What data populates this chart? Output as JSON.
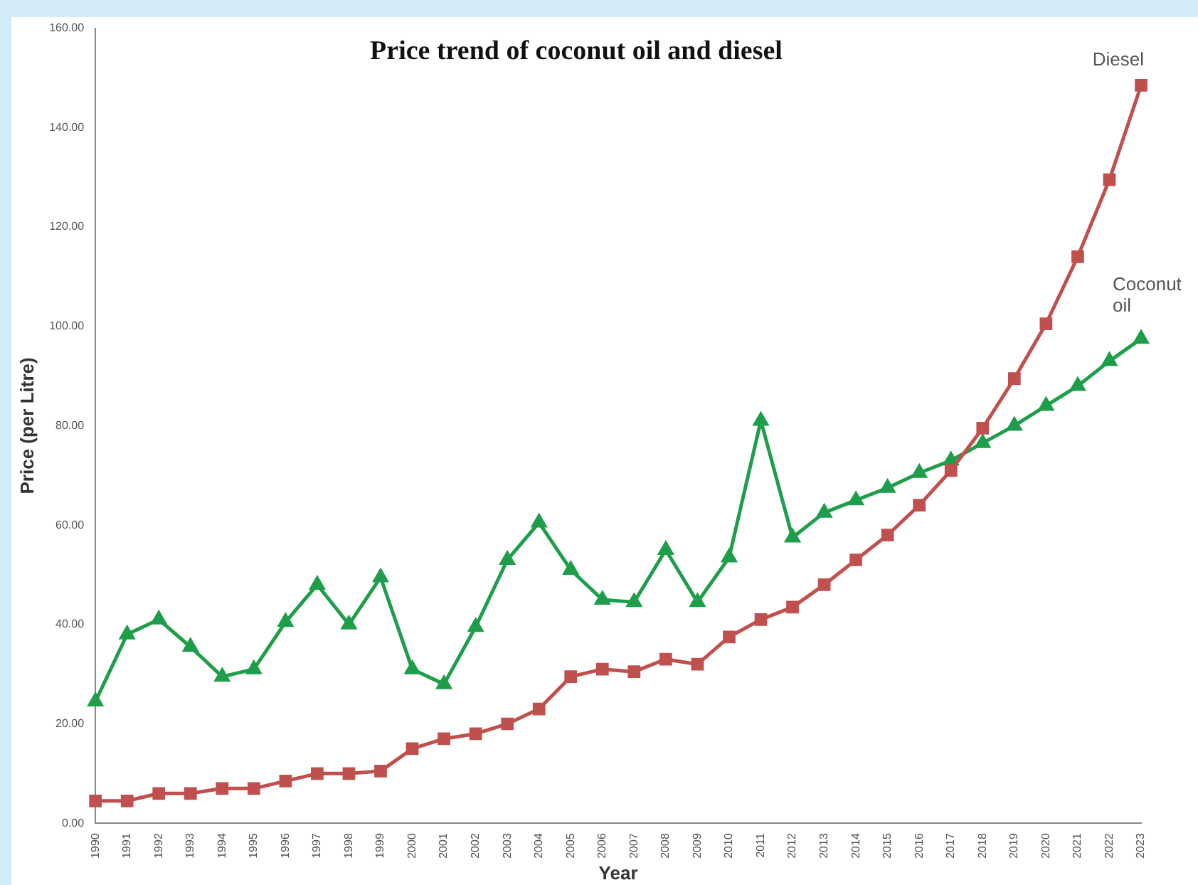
{
  "chart_data": {
    "type": "line",
    "title": "Price trend of coconut oil and diesel",
    "xlabel": "Year",
    "ylabel": "Price (per Litre)",
    "categories": [
      "1990",
      "1991",
      "1992",
      "1993",
      "1994",
      "1995",
      "1996",
      "1997",
      "1998",
      "1999",
      "2000",
      "2001",
      "2002",
      "2003",
      "2004",
      "2005",
      "2006",
      "2007",
      "2008",
      "2009",
      "2010",
      "2011",
      "2012",
      "2013",
      "2014",
      "2015",
      "2016",
      "2017",
      "2018",
      "2019",
      "2020",
      "2021",
      "2022",
      "2023"
    ],
    "series": [
      {
        "name": "Diesel",
        "color": "#c0504d",
        "marker": "square",
        "values": [
          4.5,
          4.5,
          6,
          6,
          7,
          7,
          8.5,
          10,
          10,
          10.5,
          15,
          17,
          18,
          20,
          23,
          29.5,
          31,
          30.5,
          33,
          32,
          37.5,
          41,
          43.5,
          48,
          53,
          58,
          64,
          71,
          79.5,
          89.5,
          100.5,
          114,
          129.5,
          148.5
        ]
      },
      {
        "name": "Coconut oil",
        "color": "#1e9e4a",
        "marker": "triangle",
        "values": [
          24.5,
          38,
          41,
          35.5,
          29.5,
          31,
          40.5,
          48,
          40,
          49.5,
          31,
          28,
          39.5,
          53,
          60.5,
          51,
          45,
          44.5,
          55,
          44.5,
          53.5,
          81,
          57.5,
          62.5,
          65,
          67.5,
          70.5,
          73,
          76.5,
          80,
          84,
          88,
          93,
          97.5
        ]
      }
    ],
    "ylim": [
      0,
      160
    ],
    "yticks": [
      {
        "value": 0,
        "label": "0.00"
      },
      {
        "value": 20,
        "label": "20.00"
      },
      {
        "value": 40,
        "label": "40.00"
      },
      {
        "value": 60,
        "label": "60.00"
      },
      {
        "value": 80,
        "label": "80.00"
      },
      {
        "value": 100,
        "label": "100.00"
      },
      {
        "value": 120,
        "label": "120.00"
      },
      {
        "value": 140,
        "label": "140.00"
      },
      {
        "value": 160,
        "label": "160.00"
      }
    ],
    "grid": false,
    "legend": false,
    "line_style": "solid"
  }
}
